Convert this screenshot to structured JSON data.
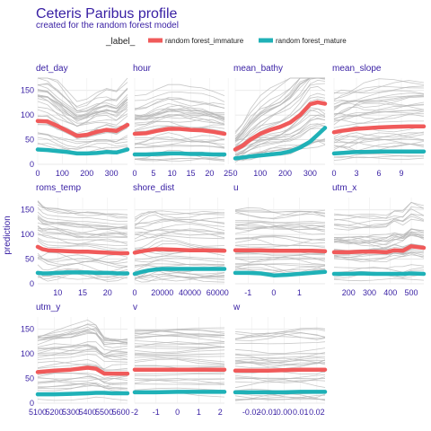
{
  "chart_data": {
    "type": "line",
    "title": "Ceteris Paribus profile",
    "subtitle": "created for the random forest model",
    "ylabel": "prediction",
    "legend": {
      "title": "_label_",
      "placement": "top",
      "entries": [
        {
          "name": "random forest_immature",
          "color": "#f05a5a"
        },
        {
          "name": "random forest_mature",
          "color": "#1fb1b7"
        }
      ]
    },
    "ylim": [
      0,
      175
    ],
    "y_ticks": [
      0,
      50,
      100,
      150
    ],
    "grid": true,
    "background_line_color": "#b5b5b5",
    "panels": [
      {
        "title": "det_day",
        "xlim": [
          0,
          365
        ],
        "x_ticks": [
          0,
          100,
          200,
          300
        ],
        "x_tick_labels": [
          "0",
          "100",
          "200",
          "300"
        ],
        "series": [
          {
            "name": "random forest_immature",
            "x": [
              0,
              40,
              80,
              120,
              160,
              200,
              240,
              280,
              320,
              365
            ],
            "y": [
              88,
              87,
              78,
              68,
              58,
              60,
              66,
              70,
              68,
              80
            ]
          },
          {
            "name": "random forest_mature",
            "x": [
              0,
              40,
              80,
              120,
              160,
              200,
              240,
              280,
              320,
              365
            ],
            "y": [
              30,
              29,
              27,
              25,
              22,
              22,
              23,
              25,
              24,
              30
            ]
          }
        ]
      },
      {
        "title": "hour",
        "xlim": [
          0,
          24
        ],
        "x_ticks": [
          0,
          5,
          10,
          15,
          20,
          25
        ],
        "x_tick_labels": [
          "0",
          "5",
          "10",
          "15",
          "20",
          "25"
        ],
        "series": [
          {
            "name": "random forest_immature",
            "x": [
              0,
              3,
              6,
              9,
              12,
              15,
              18,
              21,
              24
            ],
            "y": [
              62,
              63,
              68,
              72,
              72,
              70,
              69,
              66,
              62
            ]
          },
          {
            "name": "random forest_mature",
            "x": [
              0,
              3,
              6,
              9,
              12,
              15,
              18,
              21,
              24
            ],
            "y": [
              20,
              20,
              21,
              22,
              22,
              21,
              21,
              20,
              20
            ]
          }
        ]
      },
      {
        "title": "mean_bathy",
        "xlim": [
          0,
          360
        ],
        "x_ticks": [
          0,
          100,
          200,
          300
        ],
        "x_tick_labels": [
          "0",
          "100",
          "200",
          "300"
        ],
        "series": [
          {
            "name": "random forest_immature",
            "x": [
              0,
              30,
              60,
              100,
              140,
              180,
              220,
              260,
              300,
              330,
              360
            ],
            "y": [
              30,
              38,
              50,
              62,
              70,
              76,
              85,
              100,
              122,
              126,
              123
            ]
          },
          {
            "name": "random forest_mature",
            "x": [
              0,
              30,
              60,
              100,
              140,
              180,
              220,
              260,
              300,
              330,
              360
            ],
            "y": [
              12,
              14,
              16,
              18,
              20,
              22,
              26,
              34,
              46,
              60,
              74
            ]
          }
        ]
      },
      {
        "title": "mean_slope",
        "xlim": [
          0,
          12
        ],
        "x_ticks": [
          0,
          3,
          6,
          9
        ],
        "x_tick_labels": [
          "0",
          "3",
          "6",
          "9"
        ],
        "series": [
          {
            "name": "random forest_immature",
            "x": [
              0,
              1,
              2,
              3,
              4,
              6,
              8,
              10,
              12
            ],
            "y": [
              65,
              68,
              70,
              72,
              73,
              75,
              76,
              77,
              77
            ]
          },
          {
            "name": "random forest_mature",
            "x": [
              0,
              1,
              2,
              3,
              4,
              6,
              8,
              10,
              12
            ],
            "y": [
              22,
              23,
              24,
              25,
              25,
              26,
              26,
              26,
              26
            ]
          }
        ]
      },
      {
        "title": "roms_temp",
        "xlim": [
          6,
          24
        ],
        "x_ticks": [
          10,
          15,
          20
        ],
        "x_tick_labels": [
          "10",
          "15",
          "20"
        ],
        "series": [
          {
            "name": "random forest_immature",
            "x": [
              6,
              7,
              8,
              10,
              12,
              14,
              16,
              18,
              20,
              22,
              24
            ],
            "y": [
              75,
              70,
              68,
              67,
              66,
              65,
              65,
              64,
              63,
              62,
              62
            ]
          },
          {
            "name": "random forest_mature",
            "x": [
              6,
              7,
              8,
              10,
              12,
              14,
              16,
              18,
              20,
              22,
              24
            ],
            "y": [
              22,
              21,
              21,
              22,
              23,
              23,
              23,
              22,
              22,
              21,
              21
            ]
          }
        ]
      },
      {
        "title": "shore_dist",
        "xlim": [
          0,
          65000
        ],
        "x_ticks": [
          0,
          20000,
          40000,
          60000
        ],
        "x_tick_labels": [
          "0",
          "20000",
          "40000",
          "60000"
        ],
        "series": [
          {
            "name": "random forest_immature",
            "x": [
              0,
              5000,
              10000,
              15000,
              20000,
              30000,
              40000,
              50000,
              65000
            ],
            "y": [
              63,
              66,
              68,
              70,
              70,
              69,
              68,
              68,
              67
            ]
          },
          {
            "name": "random forest_mature",
            "x": [
              0,
              5000,
              10000,
              15000,
              20000,
              30000,
              40000,
              50000,
              65000
            ],
            "y": [
              20,
              24,
              27,
              29,
              30,
              30,
              30,
              30,
              30
            ]
          }
        ]
      },
      {
        "title": "u",
        "xlim": [
          -1.5,
          2
        ],
        "x_ticks": [
          -1,
          0,
          1
        ],
        "x_tick_labels": [
          "-1",
          "0",
          "1"
        ],
        "series": [
          {
            "name": "random forest_immature",
            "x": [
              -1.5,
              -1,
              -0.5,
              0,
              0.5,
              1,
              1.5,
              2
            ],
            "y": [
              68,
              68,
              68,
              67,
              67,
              67,
              67,
              66
            ]
          },
          {
            "name": "random forest_mature",
            "x": [
              -1.5,
              -1,
              -0.5,
              0,
              0.5,
              1,
              1.5,
              2
            ],
            "y": [
              22,
              22,
              21,
              17,
              18,
              20,
              22,
              24
            ]
          }
        ]
      },
      {
        "title": "utm_x",
        "xlim": [
          130,
          560
        ],
        "x_ticks": [
          200,
          300,
          400,
          500
        ],
        "x_tick_labels": [
          "200",
          "300",
          "400",
          "500"
        ],
        "series": [
          {
            "name": "random forest_immature",
            "x": [
              130,
              200,
              260,
              320,
              380,
              420,
              460,
              500,
              560
            ],
            "y": [
              64,
              64,
              65,
              65,
              64,
              68,
              67,
              76,
              73
            ]
          },
          {
            "name": "random forest_mature",
            "x": [
              130,
              200,
              260,
              320,
              380,
              420,
              460,
              500,
              560
            ],
            "y": [
              20,
              20,
              21,
              20,
              20,
              20,
              20,
              21,
              20
            ]
          }
        ]
      },
      {
        "title": "utm_y",
        "xlim": [
          5100,
          5640
        ],
        "x_ticks": [
          5100,
          5200,
          5300,
          5400,
          5500,
          5600
        ],
        "x_tick_labels": [
          "5100",
          "5200",
          "5300",
          "5400",
          "5500",
          "5600"
        ],
        "series": [
          {
            "name": "random forest_immature",
            "x": [
              5100,
              5200,
              5300,
              5400,
              5450,
              5500,
              5550,
              5640
            ],
            "y": [
              63,
              66,
              68,
              72,
              70,
              60,
              60,
              60
            ]
          },
          {
            "name": "random forest_mature",
            "x": [
              5100,
              5200,
              5300,
              5400,
              5450,
              5500,
              5550,
              5640
            ],
            "y": [
              18,
              18,
              19,
              20,
              21,
              21,
              20,
              20
            ]
          }
        ]
      },
      {
        "title": "v",
        "xlim": [
          -2,
          2.2
        ],
        "x_ticks": [
          -2,
          -1,
          0,
          1,
          2
        ],
        "x_tick_labels": [
          "-2",
          "-1",
          "0",
          "1",
          "2"
        ],
        "series": [
          {
            "name": "random forest_immature",
            "x": [
              -2,
              -1,
              0,
              1,
              2.2
            ],
            "y": [
              68,
              68,
              68,
              68,
              68
            ]
          },
          {
            "name": "random forest_mature",
            "x": [
              -2,
              -1,
              0,
              1,
              2.2
            ],
            "y": [
              22,
              22,
              23,
              23,
              23
            ]
          }
        ]
      },
      {
        "title": "w",
        "xlim": [
          -0.03,
          0.025
        ],
        "x_ticks": [
          -0.02,
          -0.01,
          0.0,
          0.01,
          0.02
        ],
        "x_tick_labels": [
          "-0.02",
          "-0.01",
          "0.00",
          "0.01",
          "0.02"
        ],
        "series": [
          {
            "name": "random forest_immature",
            "x": [
              -0.03,
              -0.02,
              -0.01,
              0,
              0.01,
              0.02,
              0.025
            ],
            "y": [
              66,
              66,
              66,
              67,
              68,
              68,
              68
            ]
          },
          {
            "name": "random forest_mature",
            "x": [
              -0.03,
              -0.02,
              -0.01,
              0,
              0.01,
              0.02,
              0.025
            ],
            "y": [
              22,
              22,
              22,
              22,
              23,
              23,
              23
            ]
          }
        ]
      }
    ]
  }
}
